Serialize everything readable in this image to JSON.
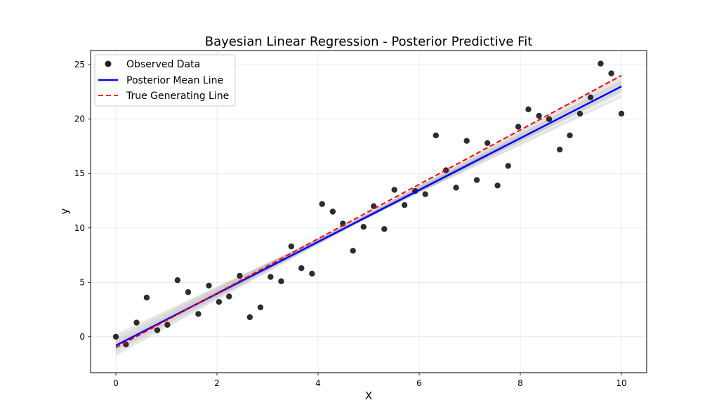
{
  "chart_data": {
    "type": "scatter",
    "title": "Bayesian Linear Regression - Posterior Predictive Fit",
    "xlabel": "X",
    "ylabel": "y",
    "xlim": [
      -0.5,
      10.5
    ],
    "ylim": [
      -3.3,
      26.3
    ],
    "xticks": [
      0,
      2,
      4,
      6,
      8,
      10
    ],
    "yticks": [
      0,
      5,
      10,
      15,
      20,
      25
    ],
    "grid": true,
    "legend_position": "upper-left",
    "legend": [
      {
        "label": "Observed Data",
        "kind": "marker",
        "color": "#222222"
      },
      {
        "label": "Posterior Mean Line",
        "kind": "solid-line",
        "color": "#0000ff"
      },
      {
        "label": "True Generating Line",
        "kind": "dashed-line",
        "color": "#ff0000"
      }
    ],
    "series": [
      {
        "name": "Observed Data",
        "kind": "scatter",
        "color": "#222222",
        "points": [
          [
            0.0,
            0.0
          ],
          [
            0.2,
            -0.7
          ],
          [
            0.41,
            1.3
          ],
          [
            0.61,
            3.6
          ],
          [
            0.82,
            0.6
          ],
          [
            1.02,
            1.1
          ],
          [
            1.22,
            5.2
          ],
          [
            1.43,
            4.1
          ],
          [
            1.63,
            2.1
          ],
          [
            1.84,
            4.7
          ],
          [
            2.04,
            3.2
          ],
          [
            2.24,
            3.7
          ],
          [
            2.45,
            5.6
          ],
          [
            2.65,
            1.8
          ],
          [
            2.86,
            2.7
          ],
          [
            3.06,
            5.5
          ],
          [
            3.27,
            5.1
          ],
          [
            3.47,
            8.3
          ],
          [
            3.67,
            6.3
          ],
          [
            3.88,
            5.8
          ],
          [
            4.08,
            12.2
          ],
          [
            4.29,
            11.5
          ],
          [
            4.49,
            10.4
          ],
          [
            4.69,
            7.9
          ],
          [
            4.9,
            10.1
          ],
          [
            5.1,
            12.0
          ],
          [
            5.31,
            9.9
          ],
          [
            5.51,
            13.5
          ],
          [
            5.71,
            12.1
          ],
          [
            5.92,
            13.4
          ],
          [
            6.12,
            13.1
          ],
          [
            6.33,
            18.5
          ],
          [
            6.53,
            15.3
          ],
          [
            6.73,
            13.7
          ],
          [
            6.94,
            18.0
          ],
          [
            7.14,
            14.4
          ],
          [
            7.35,
            17.8
          ],
          [
            7.55,
            13.9
          ],
          [
            7.76,
            15.7
          ],
          [
            7.96,
            19.3
          ],
          [
            8.16,
            20.9
          ],
          [
            8.37,
            20.3
          ],
          [
            8.57,
            20.0
          ],
          [
            8.78,
            17.2
          ],
          [
            8.98,
            18.5
          ],
          [
            9.18,
            20.5
          ],
          [
            9.39,
            22.0
          ],
          [
            9.59,
            25.1
          ],
          [
            9.8,
            24.2
          ],
          [
            10.0,
            20.5
          ]
        ]
      },
      {
        "name": "Posterior Mean Line",
        "kind": "line",
        "color": "#0000ff",
        "x": [
          0,
          10
        ],
        "y": [
          -0.8,
          23.0
        ]
      },
      {
        "name": "True Generating Line",
        "kind": "line",
        "style": "dashed",
        "color": "#ff0000",
        "x": [
          0,
          10
        ],
        "y": [
          -1.0,
          24.0
        ]
      }
    ],
    "posterior_samples": {
      "color": "#b0b0b0",
      "lines": [
        [
          -0.3,
          22.6
        ],
        [
          -1.3,
          23.5
        ],
        [
          -0.6,
          22.8
        ],
        [
          -1.0,
          23.3
        ],
        [
          -0.5,
          23.0
        ],
        [
          -1.5,
          23.6
        ],
        [
          0.0,
          22.2
        ],
        [
          -0.9,
          23.1
        ],
        [
          -0.2,
          22.5
        ],
        [
          -1.2,
          23.8
        ],
        [
          -0.7,
          22.7
        ],
        [
          -1.4,
          24.0
        ],
        [
          -0.4,
          22.9
        ],
        [
          -0.8,
          23.2
        ],
        [
          0.2,
          22.0
        ],
        [
          -1.1,
          23.4
        ],
        [
          -0.6,
          23.1
        ],
        [
          -1.6,
          24.1
        ],
        [
          -0.1,
          22.4
        ],
        [
          -0.9,
          22.8
        ],
        [
          -1.3,
          23.7
        ],
        [
          -0.5,
          22.6
        ],
        [
          -1.0,
          23.5
        ],
        [
          -0.2,
          22.9
        ],
        [
          -1.7,
          23.9
        ],
        [
          -0.7,
          23.0
        ],
        [
          0.1,
          22.1
        ],
        [
          -1.2,
          23.3
        ],
        [
          -0.4,
          22.7
        ],
        [
          -0.8,
          23.4
        ]
      ]
    }
  }
}
